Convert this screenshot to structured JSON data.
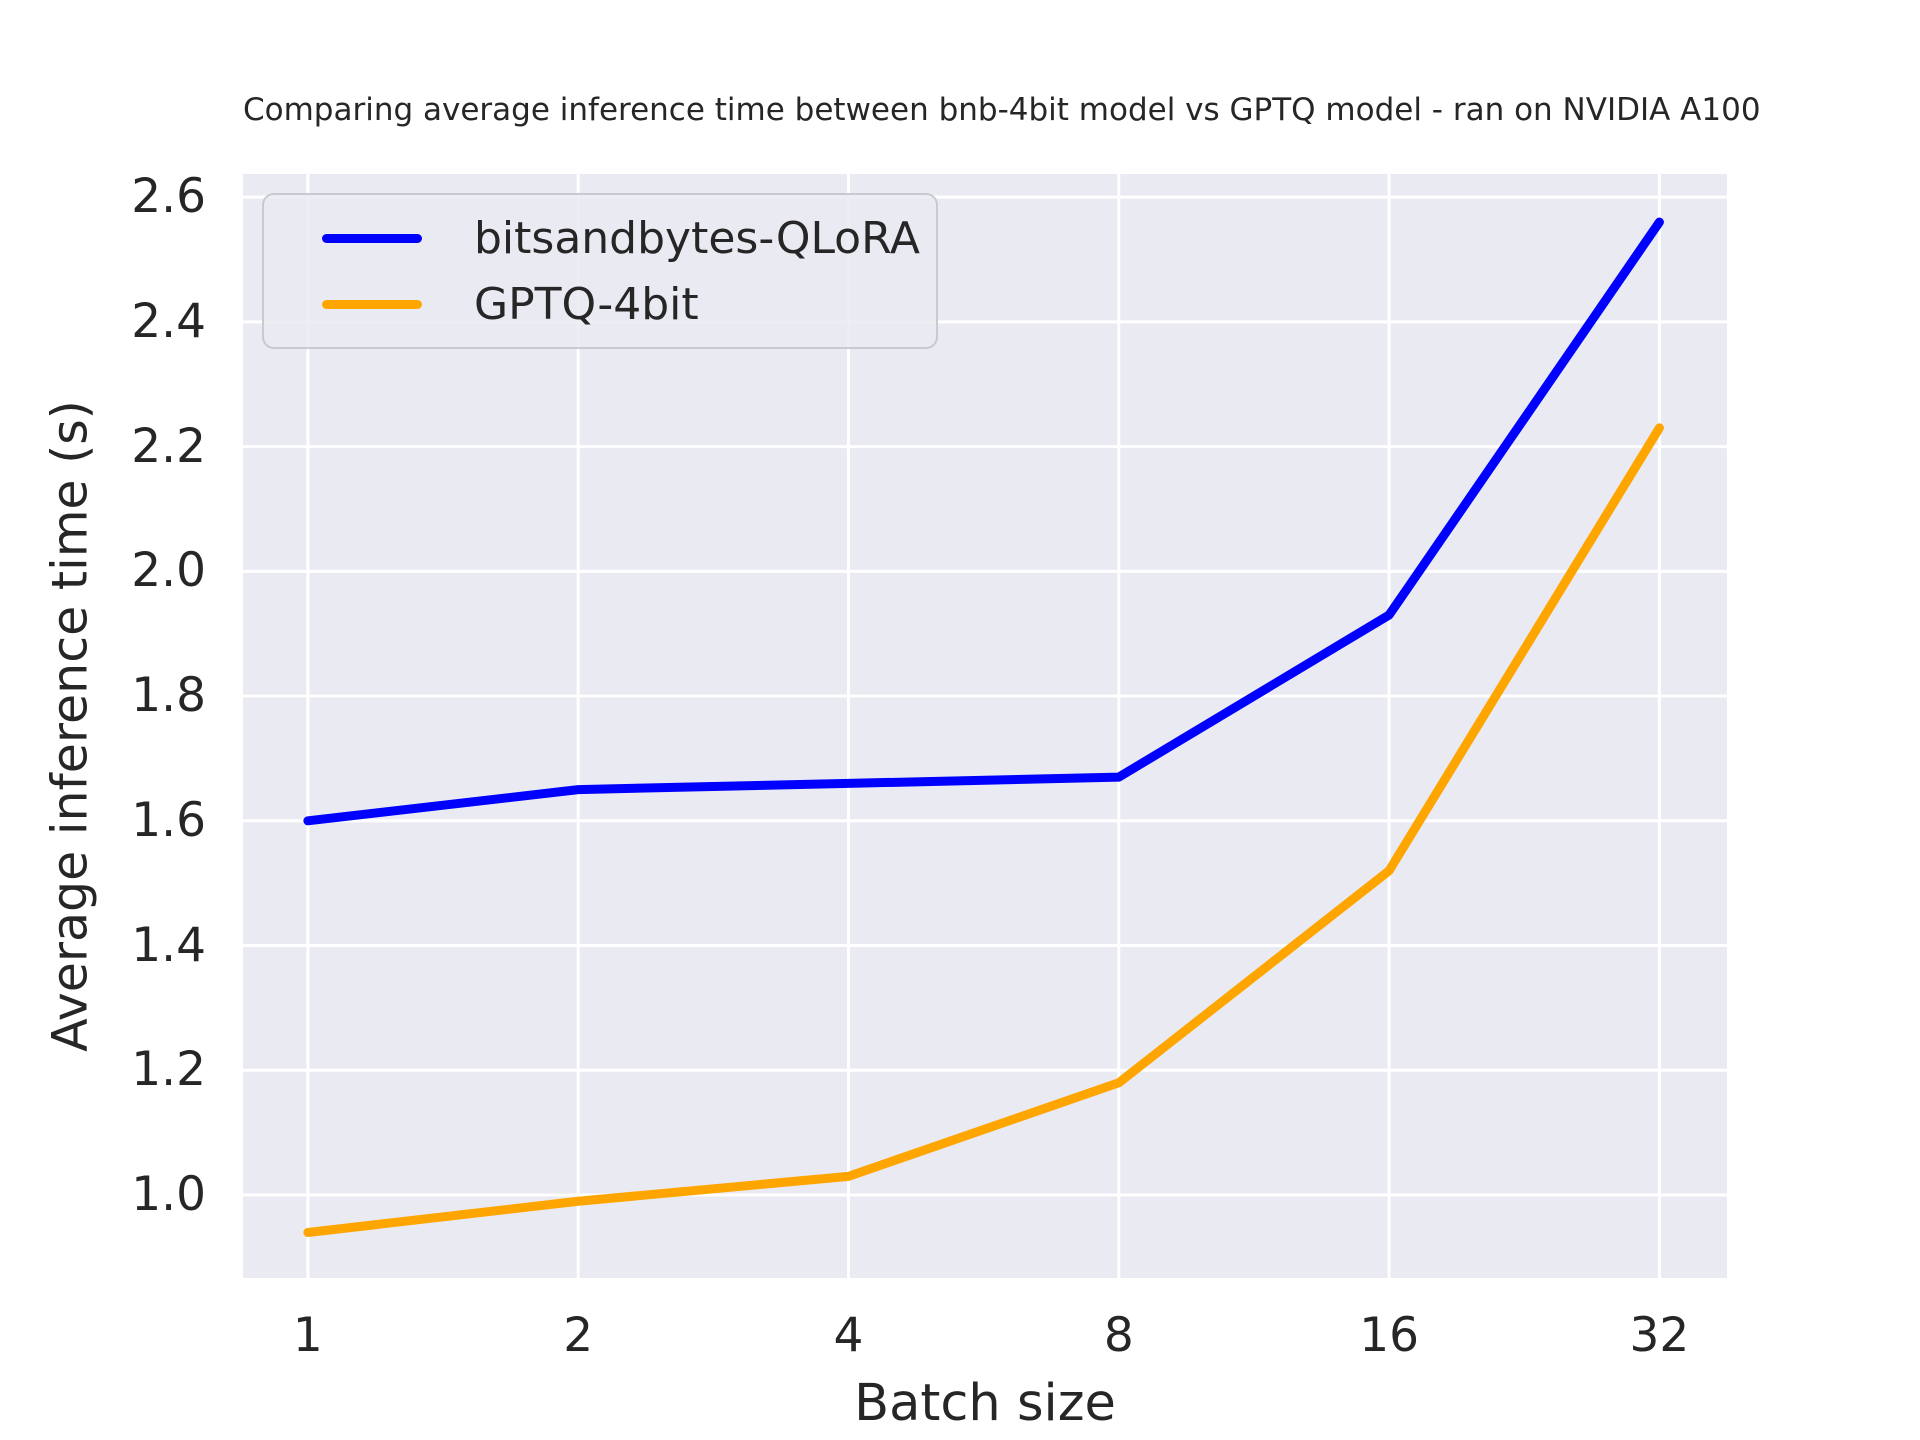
{
  "figure": {
    "background": "#ffffff",
    "plot_background": "#eaeaf2",
    "gridline_color": "#ffffff",
    "text_color": "#262626"
  },
  "chart_data": {
    "type": "line",
    "title": "Comparing average inference time between bnb-4bit model vs GPTQ model - ran on NVIDIA A100",
    "xlabel": "Batch size",
    "ylabel": "Average inference time (s)",
    "x_scale": "log2",
    "categories": [
      1,
      2,
      4,
      8,
      16,
      32
    ],
    "series": [
      {
        "name": "bitsandbytes-QLoRA",
        "color": "#0000ff",
        "values": [
          1.6,
          1.65,
          1.66,
          1.67,
          1.93,
          2.56
        ]
      },
      {
        "name": "GPTQ-4bit",
        "color": "#ffa500",
        "values": [
          0.94,
          0.99,
          1.03,
          1.18,
          1.52,
          2.23
        ]
      }
    ],
    "yticks": [
      1.0,
      1.2,
      1.4,
      1.6,
      1.8,
      2.0,
      2.2,
      2.4,
      2.6
    ],
    "ylim": [
      0.867,
      2.637
    ],
    "xlim_log2": [
      -0.24,
      5.25
    ],
    "grid": true,
    "legend_position": "upper left",
    "line_width": 9,
    "gridline_width": 3
  }
}
